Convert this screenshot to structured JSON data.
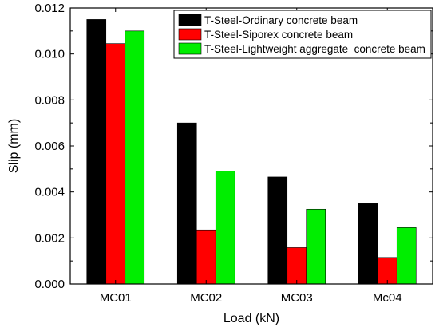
{
  "chart_data": {
    "type": "bar",
    "title": "",
    "xlabel": "Load (kN)",
    "ylabel": "Slip (mm)",
    "categories": [
      "MC01",
      "MC02",
      "MC03",
      "Mc04"
    ],
    "ylim": [
      0,
      0.012
    ],
    "yticks": [
      "0.000",
      "0.002",
      "0.004",
      "0.006",
      "0.008",
      "0.010",
      "0.012"
    ],
    "grid": false,
    "legend_position": "top-right",
    "series": [
      {
        "name": "T-Steel-Ordinary concrete beam",
        "color": "#000000",
        "values": [
          0.0115,
          0.007,
          0.00465,
          0.0035
        ]
      },
      {
        "name": "T-Steel-Siporex concrete beam",
        "color": "#ff0000",
        "values": [
          0.01045,
          0.00235,
          0.00158,
          0.00115
        ]
      },
      {
        "name": "T-Steel-Lightweight aggregate  concrete beam",
        "color": "#00ee00",
        "values": [
          0.011,
          0.0049,
          0.00325,
          0.00245
        ]
      }
    ]
  }
}
